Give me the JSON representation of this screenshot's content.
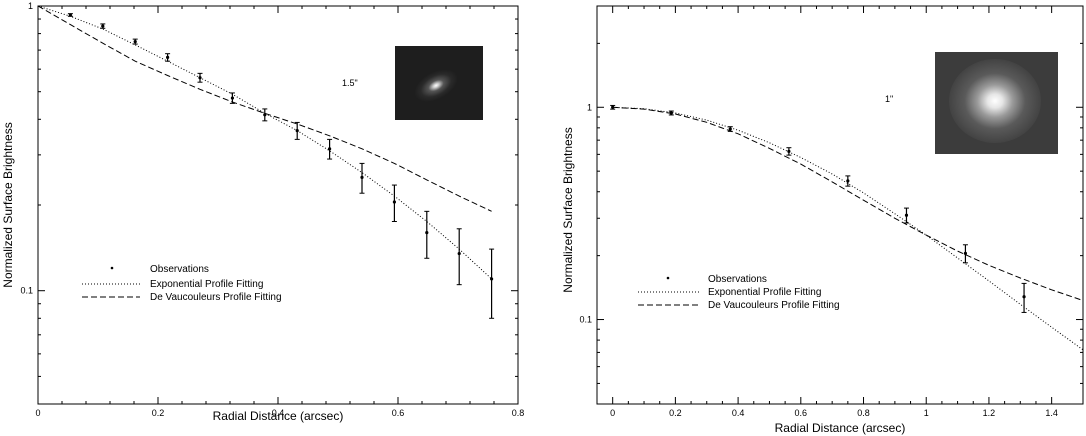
{
  "chart_data": [
    {
      "type": "line",
      "xlabel": "Radial Distance (arcsec)",
      "ylabel": "Normalized Surface Brightness",
      "xlim": [
        0,
        0.8
      ],
      "ylim": [
        0.04,
        1.0
      ],
      "yscale": "log",
      "xticks": [
        0,
        0.2,
        0.4,
        0.6,
        0.8
      ],
      "xtick_labels": [
        "0",
        "0.2",
        "0.4",
        "0.6",
        "0.8"
      ],
      "yticks": [
        0.1,
        1
      ],
      "ytick_labels": [
        "0.1",
        "1"
      ],
      "inset_label": "1.5\"",
      "legend": {
        "placement": "lower-left",
        "entries": [
          "Observations",
          "Exponential Profile Fitting",
          "De Vaucouleurs Profile Fitting"
        ]
      },
      "series": [
        {
          "name": "Observations",
          "style": "points-with-errorbars",
          "x": [
            0.054,
            0.108,
            0.162,
            0.216,
            0.27,
            0.324,
            0.378,
            0.432,
            0.486,
            0.54,
            0.594,
            0.648,
            0.702,
            0.756
          ],
          "y": [
            0.93,
            0.85,
            0.75,
            0.66,
            0.56,
            0.475,
            0.415,
            0.365,
            0.315,
            0.25,
            0.205,
            0.16,
            0.135,
            0.11
          ],
          "yerr": [
            0.01,
            0.015,
            0.015,
            0.02,
            0.02,
            0.02,
            0.02,
            0.025,
            0.025,
            0.03,
            0.03,
            0.03,
            0.03,
            0.03
          ]
        },
        {
          "name": "Exponential Profile Fitting",
          "style": "dotted",
          "x": [
            0.0,
            0.054,
            0.108,
            0.162,
            0.216,
            0.27,
            0.324,
            0.378,
            0.432,
            0.486,
            0.54,
            0.594,
            0.648,
            0.702,
            0.756
          ],
          "y": [
            1.0,
            0.92,
            0.83,
            0.73,
            0.64,
            0.56,
            0.49,
            0.42,
            0.365,
            0.31,
            0.26,
            0.215,
            0.175,
            0.14,
            0.11
          ]
        },
        {
          "name": "De Vaucouleurs Profile Fitting",
          "style": "dashed",
          "x": [
            0.0,
            0.054,
            0.108,
            0.162,
            0.216,
            0.27,
            0.324,
            0.378,
            0.432,
            0.486,
            0.54,
            0.594,
            0.648,
            0.702,
            0.756
          ],
          "y": [
            1.0,
            0.86,
            0.74,
            0.64,
            0.57,
            0.51,
            0.46,
            0.42,
            0.385,
            0.35,
            0.315,
            0.28,
            0.245,
            0.215,
            0.19
          ]
        }
      ]
    },
    {
      "type": "line",
      "xlabel": "Radial Distance (arcsec)",
      "ylabel": "Normalized Surface Brightness",
      "xlim": [
        -0.05,
        1.5
      ],
      "ylim": [
        0.04,
        3.0
      ],
      "yscale": "log",
      "xticks": [
        0,
        0.2,
        0.4,
        0.6,
        0.8,
        1,
        1.2,
        1.4
      ],
      "xtick_labels": [
        "0",
        "0.2",
        "0.4",
        "0.6",
        "0.8",
        "1",
        "1.2",
        "1.4"
      ],
      "yticks": [
        0.1,
        1
      ],
      "ytick_labels": [
        "0.1",
        "1"
      ],
      "inset_label": "1\"",
      "legend": {
        "placement": "lower-left",
        "entries": [
          "Observations",
          "Exponential Profile Fitting",
          "De Vaucouleurs Profile Fitting"
        ]
      },
      "series": [
        {
          "name": "Observations",
          "style": "points-with-errorbars",
          "x": [
            0.0,
            0.187,
            0.375,
            0.562,
            0.75,
            0.937,
            1.125,
            1.312
          ],
          "y": [
            1.0,
            0.94,
            0.79,
            0.62,
            0.45,
            0.31,
            0.205,
            0.128
          ],
          "yerr": [
            0.02,
            0.02,
            0.02,
            0.025,
            0.025,
            0.025,
            0.02,
            0.02
          ]
        },
        {
          "name": "Exponential Profile Fitting",
          "style": "dotted",
          "x": [
            0.0,
            0.1,
            0.2,
            0.3,
            0.4,
            0.5,
            0.6,
            0.7,
            0.8,
            0.9,
            1.0,
            1.1,
            1.2,
            1.3,
            1.4,
            1.5
          ],
          "y": [
            1.0,
            0.985,
            0.94,
            0.87,
            0.78,
            0.68,
            0.58,
            0.485,
            0.395,
            0.315,
            0.25,
            0.195,
            0.152,
            0.118,
            0.092,
            0.072
          ]
        },
        {
          "name": "De Vaucouleurs Profile Fitting",
          "style": "dashed",
          "x": [
            0.0,
            0.1,
            0.2,
            0.3,
            0.4,
            0.5,
            0.6,
            0.7,
            0.8,
            0.9,
            1.0,
            1.1,
            1.2,
            1.3,
            1.4,
            1.5
          ],
          "y": [
            1.0,
            0.98,
            0.93,
            0.85,
            0.75,
            0.64,
            0.54,
            0.445,
            0.365,
            0.3,
            0.25,
            0.21,
            0.18,
            0.157,
            0.138,
            0.123
          ]
        }
      ]
    }
  ]
}
